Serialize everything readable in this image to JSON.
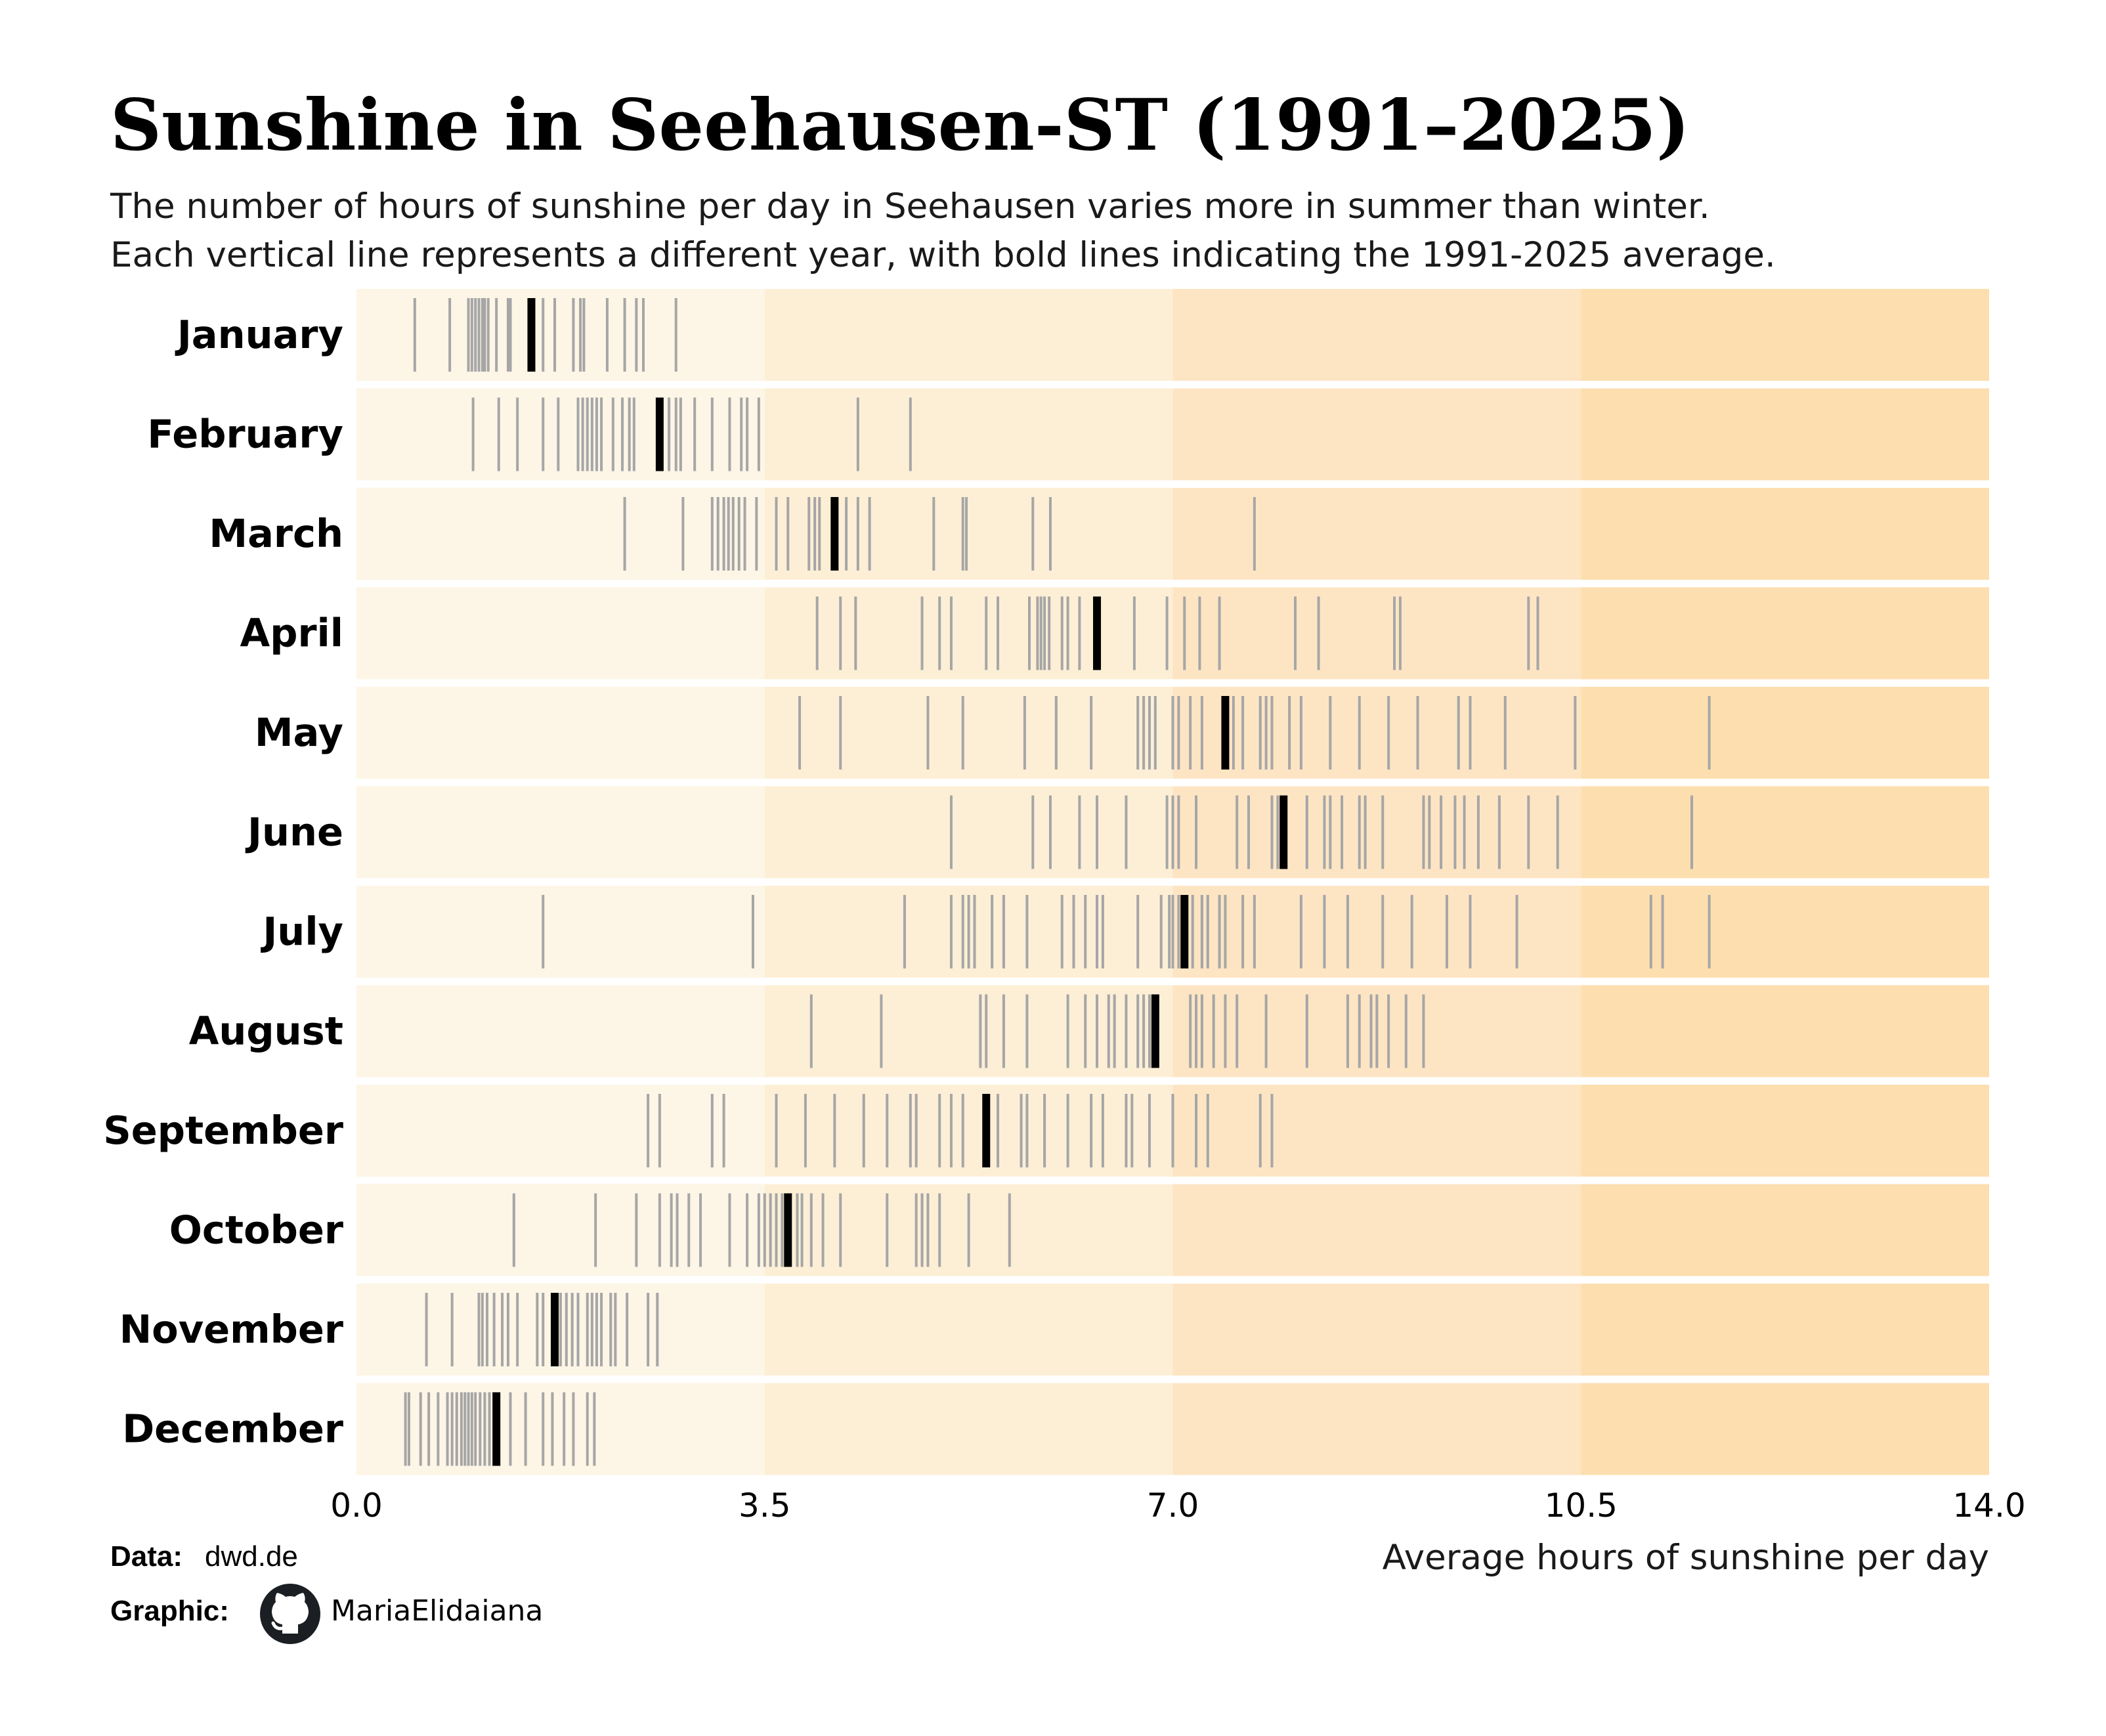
{
  "title": "Sunshine in Seehausen-ST (1991–2025)",
  "subtitle_lines": [
    "The number of hours of sunshine per day in Seehausen varies more in summer than winter.",
    "Each vertical line represents a different year, with bold lines indicating the 1991-2025 average."
  ],
  "credits": {
    "data_label": "Data:",
    "data_value": "dwd.de",
    "graphic_label": "Graphic:",
    "graphic_icon": "github-icon",
    "graphic_value": "MariaElidaiana"
  },
  "chart_data": {
    "type": "strip",
    "xlabel": "Average hours of sunshine per day",
    "xlim": [
      0,
      14
    ],
    "xticks": [
      0,
      3.5,
      7,
      10.5,
      14
    ],
    "xtick_labels": [
      "0.0",
      "3.5",
      "7.0",
      "10.5",
      "14.0"
    ],
    "bands": [
      {
        "from": 0,
        "to": 3.5,
        "color": "#fdf5e6"
      },
      {
        "from": 3.5,
        "to": 7,
        "color": "#fdefd6"
      },
      {
        "from": 7,
        "to": 10.5,
        "color": "#fde5c4"
      },
      {
        "from": 10.5,
        "to": 14,
        "color": "#fddeaf"
      }
    ],
    "year_line_color": "#a6a6a6",
    "average_line_color": "#000000",
    "months": [
      {
        "name": "January",
        "average": 1.5,
        "years": [
          0.5,
          0.8,
          0.96,
          0.99,
          1.02,
          1.05,
          1.08,
          1.1,
          1.13,
          1.2,
          1.3,
          1.32,
          1.52,
          1.6,
          1.7,
          1.86,
          1.92,
          1.95,
          2.15,
          2.3,
          2.4,
          2.46,
          2.74
        ]
      },
      {
        "name": "February",
        "average": 2.6,
        "years": [
          1.0,
          1.22,
          1.38,
          1.6,
          1.73,
          1.9,
          1.94,
          1.98,
          2.02,
          2.06,
          2.1,
          2.2,
          2.28,
          2.34,
          2.38,
          2.68,
          2.74,
          2.78,
          2.9,
          3.05,
          3.2,
          3.3,
          3.35,
          3.45,
          4.3,
          4.75
        ]
      },
      {
        "name": "March",
        "average": 4.1,
        "years": [
          2.3,
          2.8,
          3.05,
          3.1,
          3.15,
          3.19,
          3.23,
          3.28,
          3.33,
          3.43,
          3.6,
          3.7,
          3.88,
          3.93,
          3.97,
          4.2,
          4.3,
          4.4,
          4.95,
          5.2,
          5.23,
          5.8,
          5.95,
          7.7
        ]
      },
      {
        "name": "April",
        "average": 6.35,
        "years": [
          3.95,
          4.15,
          4.28,
          4.85,
          5.0,
          5.1,
          5.4,
          5.5,
          5.77,
          5.84,
          5.87,
          5.9,
          5.94,
          6.05,
          6.1,
          6.2,
          6.67,
          6.95,
          7.1,
          7.23,
          7.4,
          8.05,
          8.25,
          8.9,
          8.95,
          10.05,
          10.13
        ]
      },
      {
        "name": "May",
        "average": 7.45,
        "years": [
          3.8,
          4.15,
          4.9,
          5.2,
          5.73,
          6.0,
          6.3,
          6.7,
          6.75,
          6.8,
          6.85,
          7.0,
          7.05,
          7.15,
          7.25,
          7.52,
          7.6,
          7.75,
          7.8,
          7.85,
          8.0,
          8.1,
          8.35,
          8.6,
          8.85,
          9.1,
          9.45,
          9.55,
          9.85,
          10.45,
          11.6
        ]
      },
      {
        "name": "June",
        "average": 7.95,
        "years": [
          5.1,
          5.8,
          5.95,
          6.2,
          6.35,
          6.6,
          6.95,
          7.0,
          7.05,
          7.2,
          7.55,
          7.65,
          7.85,
          7.9,
          8.15,
          8.3,
          8.35,
          8.45,
          8.6,
          8.65,
          8.8,
          9.15,
          9.2,
          9.3,
          9.42,
          9.5,
          9.62,
          9.8,
          10.05,
          10.3,
          11.45
        ]
      },
      {
        "name": "July",
        "average": 7.1,
        "years": [
          1.6,
          3.4,
          4.7,
          5.1,
          5.2,
          5.25,
          5.3,
          5.45,
          5.55,
          5.75,
          6.05,
          6.15,
          6.25,
          6.35,
          6.4,
          6.7,
          6.9,
          6.97,
          7.0,
          7.05,
          7.17,
          7.25,
          7.3,
          7.4,
          7.45,
          7.6,
          7.7,
          8.1,
          8.3,
          8.5,
          8.8,
          9.05,
          9.35,
          9.55,
          9.95,
          11.1,
          11.2,
          11.6
        ]
      },
      {
        "name": "August",
        "average": 6.85,
        "years": [
          3.9,
          4.5,
          5.35,
          5.4,
          5.55,
          5.75,
          6.1,
          6.25,
          6.35,
          6.45,
          6.5,
          6.6,
          6.7,
          6.75,
          6.8,
          7.15,
          7.2,
          7.25,
          7.35,
          7.45,
          7.55,
          7.8,
          8.15,
          8.5,
          8.6,
          8.7,
          8.75,
          8.85,
          9.0,
          9.15
        ]
      },
      {
        "name": "September",
        "average": 5.4,
        "years": [
          2.5,
          2.6,
          3.05,
          3.15,
          3.6,
          3.85,
          4.1,
          4.35,
          4.55,
          4.75,
          4.8,
          5.0,
          5.1,
          5.2,
          5.5,
          5.7,
          5.75,
          5.9,
          6.1,
          6.3,
          6.4,
          6.6,
          6.65,
          6.8,
          7.0,
          7.2,
          7.3,
          7.75,
          7.85
        ]
      },
      {
        "name": "October",
        "average": 3.7,
        "years": [
          1.35,
          2.05,
          2.4,
          2.6,
          2.7,
          2.75,
          2.85,
          2.95,
          3.2,
          3.35,
          3.45,
          3.5,
          3.55,
          3.6,
          3.65,
          3.78,
          3.82,
          3.9,
          4.0,
          4.15,
          4.55,
          4.8,
          4.85,
          4.9,
          5.0,
          5.25,
          5.6
        ]
      },
      {
        "name": "November",
        "average": 1.7,
        "years": [
          0.6,
          0.82,
          1.05,
          1.08,
          1.12,
          1.18,
          1.25,
          1.3,
          1.38,
          1.55,
          1.6,
          1.75,
          1.8,
          1.85,
          1.9,
          1.98,
          2.02,
          2.06,
          2.1,
          2.18,
          2.22,
          2.32,
          2.5,
          2.58
        ]
      },
      {
        "name": "December",
        "average": 1.2,
        "years": [
          0.42,
          0.45,
          0.55,
          0.62,
          0.7,
          0.78,
          0.82,
          0.86,
          0.9,
          0.93,
          0.96,
          0.99,
          1.02,
          1.06,
          1.1,
          1.14,
          1.2,
          1.32,
          1.45,
          1.6,
          1.68,
          1.78,
          1.86,
          1.98,
          2.04
        ]
      }
    ]
  }
}
